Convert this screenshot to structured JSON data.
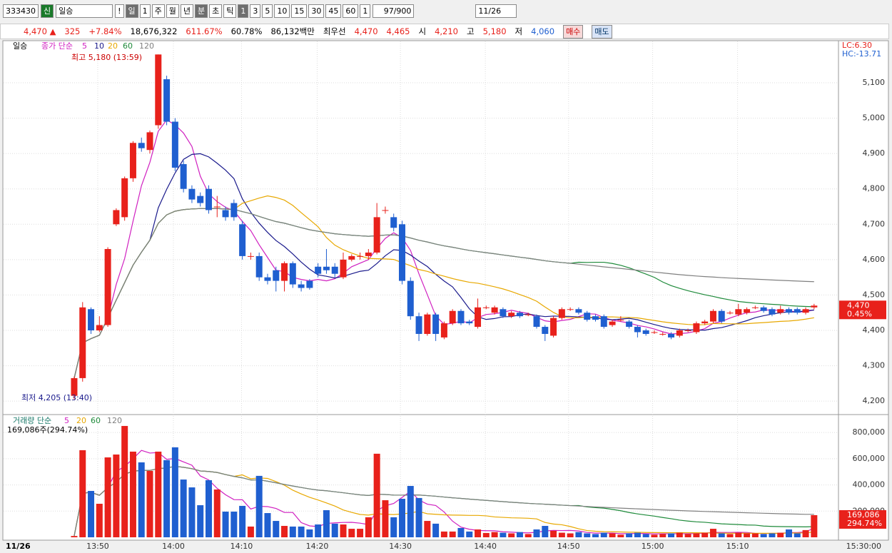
{
  "toolbar": {
    "code": "333430",
    "badge": "신",
    "name": "일승",
    "buttons": [
      "!",
      "일",
      "1",
      "주",
      "월",
      "년",
      "분",
      "초",
      "틱",
      "1",
      "3",
      "5",
      "10",
      "15",
      "30",
      "45",
      "60",
      "1"
    ],
    "count": "97/900",
    "date": "11/26"
  },
  "quote": {
    "price": "4,470 ▲",
    "change": "325",
    "rate": "+7.84%",
    "volume": "18,676,322",
    "vol_rate": "611.67%",
    "turnover_rate": "60.78%",
    "amount": "86,132백만",
    "best_label": "최우선",
    "ask": "4,470",
    "bid": "4,465",
    "open_label": "시",
    "open": "4,210",
    "high_label": "고",
    "high": "5,180",
    "low_label": "저",
    "low": "4,060",
    "buy": "매수",
    "sell": "매도"
  },
  "chart_data": {
    "type": "candlestick",
    "panel_title": "일승",
    "ma_label": "종가 단순",
    "ma_periods": [
      5,
      10,
      20,
      60,
      120
    ],
    "ma_colors": [
      "#d020c0",
      "#1a1a8c",
      "#e8a800",
      "#1e8a3a",
      "#808080"
    ],
    "up_color": "#e8211b",
    "down_color": "#1f5fd0",
    "open": [
      4215,
      4265,
      4460,
      4400,
      4415,
      4700,
      4720,
      4830,
      4930,
      4910,
      4980,
      5110,
      4990,
      4870,
      4800,
      4780,
      4800,
      4750,
      4740,
      4760,
      4700,
      4610,
      4610,
      4550,
      4570,
      4540,
      4590,
      4530,
      4540,
      4580,
      4580,
      4580,
      4550,
      4600,
      4610,
      4610,
      4620,
      4740,
      4720,
      4700,
      4540,
      4440,
      4390,
      4445,
      4380,
      4420,
      4455,
      4425,
      4410,
      4465,
      4450,
      4460,
      4440,
      4450,
      4445,
      4440,
      4410,
      4385,
      4435,
      4460,
      4460,
      4450,
      4440,
      4440,
      4415,
      4430,
      4425,
      4410,
      4400,
      4395,
      4390,
      4390,
      4385,
      4400,
      4395,
      4420,
      4425,
      4455,
      4450,
      4445,
      4450,
      4465,
      4465,
      4460,
      4450,
      4460,
      4460,
      4450,
      4465
    ],
    "high": [
      4270,
      4480,
      4465,
      4440,
      4635,
      4745,
      4835,
      4935,
      4945,
      4965,
      5180,
      5120,
      5000,
      4880,
      4810,
      4790,
      4810,
      4780,
      4750,
      4770,
      4710,
      4620,
      4620,
      4560,
      4580,
      4595,
      4595,
      4540,
      4545,
      4590,
      4630,
      4590,
      4620,
      4615,
      4620,
      4630,
      4760,
      4750,
      4730,
      4710,
      4550,
      4450,
      4450,
      4450,
      4425,
      4460,
      4460,
      4430,
      4490,
      4470,
      4470,
      4465,
      4455,
      4455,
      4450,
      4445,
      4415,
      4440,
      4465,
      4465,
      4465,
      4455,
      4445,
      4445,
      4430,
      4440,
      4430,
      4415,
      4405,
      4400,
      4395,
      4395,
      4405,
      4405,
      4425,
      4430,
      4460,
      4460,
      4455,
      4475,
      4465,
      4470,
      4470,
      4465,
      4470,
      4465,
      4465,
      4465,
      4475
    ],
    "low": [
      4205,
      4255,
      4390,
      4395,
      4410,
      4695,
      4710,
      4820,
      4905,
      4900,
      4970,
      4980,
      4850,
      4790,
      4760,
      4750,
      4730,
      4720,
      4710,
      4710,
      4600,
      4600,
      4540,
      4530,
      4510,
      4510,
      4520,
      4510,
      4515,
      4550,
      4560,
      4550,
      4545,
      4595,
      4600,
      4600,
      4615,
      4730,
      4680,
      4530,
      4430,
      4370,
      4385,
      4370,
      4375,
      4415,
      4415,
      4415,
      4405,
      4460,
      4445,
      4435,
      4435,
      4435,
      4440,
      4405,
      4370,
      4380,
      4430,
      4455,
      4445,
      4425,
      4425,
      4405,
      4410,
      4425,
      4405,
      4380,
      4385,
      4390,
      4385,
      4375,
      4380,
      4395,
      4390,
      4415,
      4420,
      4420,
      4445,
      4440,
      4445,
      4460,
      4450,
      4440,
      4445,
      4445,
      4445,
      4445,
      4460
    ],
    "close": [
      4265,
      4465,
      4400,
      4415,
      4630,
      4740,
      4830,
      4930,
      4915,
      4960,
      5180,
      4990,
      4860,
      4800,
      4770,
      4760,
      4740,
      4750,
      4720,
      4720,
      4610,
      4610,
      4550,
      4540,
      4540,
      4590,
      4530,
      4520,
      4520,
      4560,
      4570,
      4560,
      4600,
      4610,
      4610,
      4620,
      4720,
      4740,
      4690,
      4540,
      4440,
      4390,
      4445,
      4390,
      4420,
      4455,
      4420,
      4420,
      4465,
      4465,
      4465,
      4440,
      4450,
      4440,
      4445,
      4410,
      4390,
      4435,
      4460,
      4460,
      4450,
      4430,
      4430,
      4410,
      4425,
      4430,
      4410,
      4395,
      4390,
      4395,
      4390,
      4380,
      4400,
      4400,
      4420,
      4425,
      4455,
      4425,
      4450,
      4460,
      4460,
      4465,
      4455,
      4445,
      4460,
      4450,
      4450,
      4460,
      4470
    ],
    "volume": [
      10000,
      665000,
      354000,
      256000,
      610000,
      632000,
      850000,
      654000,
      572000,
      507000,
      654000,
      589000,
      687000,
      441000,
      381000,
      245000,
      436000,
      365000,
      196000,
      196000,
      240000,
      82000,
      469000,
      185000,
      125000,
      87000,
      82000,
      82000,
      60000,
      98000,
      207000,
      104000,
      98000,
      65000,
      65000,
      153000,
      638000,
      283000,
      153000,
      294000,
      392000,
      300000,
      125000,
      104000,
      44000,
      44000,
      71000,
      44000,
      60000,
      33000,
      40000,
      35000,
      30000,
      40000,
      25000,
      60000,
      87000,
      50000,
      35000,
      30000,
      40000,
      30000,
      25000,
      35000,
      30000,
      20000,
      30000,
      35000,
      25000,
      20000,
      25000,
      30000,
      35000,
      25000,
      30000,
      35000,
      65000,
      30000,
      25000,
      35000,
      30000,
      30000,
      25000,
      30000,
      35000,
      60000,
      30000,
      55000,
      169086
    ],
    "xlim": [
      -8.4,
      90.9
    ],
    "xticks": [
      {
        "value": 2.8,
        "label": "13:50"
      },
      {
        "value": 11.8,
        "label": "14:00"
      },
      {
        "value": 19.9,
        "label": "14:10"
      },
      {
        "value": 28.9,
        "label": "14:20"
      },
      {
        "value": 38.8,
        "label": "14:30"
      },
      {
        "value": 48.9,
        "label": "14:40"
      },
      {
        "value": 58.8,
        "label": "14:50"
      },
      {
        "value": 68.8,
        "label": "15:00"
      },
      {
        "value": 78.9,
        "label": "15:10"
      },
      {
        "value": 93.9,
        "label": "15:30:00"
      }
    ],
    "date_label": "11/26",
    "ylim": [
      4164,
      5217
    ],
    "yticks": [
      {
        "value": 4200,
        "label": "4,200"
      },
      {
        "value": 4300,
        "label": "4,300"
      },
      {
        "value": 4400,
        "label": "4,400"
      },
      {
        "value": 4500,
        "label": "4,500"
      },
      {
        "value": 4600,
        "label": "4,600"
      },
      {
        "value": 4700,
        "label": "4,700"
      },
      {
        "value": 4800,
        "label": "4,800"
      },
      {
        "value": 4900,
        "label": "4,900"
      },
      {
        "value": 5000,
        "label": "5,000"
      },
      {
        "value": 5100,
        "label": "5,100"
      }
    ],
    "volume_label": "거래량 단순",
    "volume_periods": [
      5,
      20,
      60,
      120
    ],
    "volume_colors": [
      "#d020c0",
      "#e8a800",
      "#1e8a3a",
      "#808080"
    ],
    "volume_summary": "169,086주(294.74%)",
    "vlim": [
      0,
      926000
    ],
    "vticks": [
      {
        "value": 200000,
        "label": "200,000"
      },
      {
        "value": 400000,
        "label": "400,000"
      },
      {
        "value": 600000,
        "label": "600,000"
      },
      {
        "value": 800000,
        "label": "800,000"
      }
    ],
    "high_note": "최고 5,180 (13:59)",
    "low_note": "최저 4,205 (13:40)",
    "lc": "LC:6.30",
    "hc": "HC:-13.71",
    "last_price": "4,470",
    "last_rate": "0.45%",
    "last_volume": "169,086",
    "last_volume_rate": "294.74%"
  }
}
